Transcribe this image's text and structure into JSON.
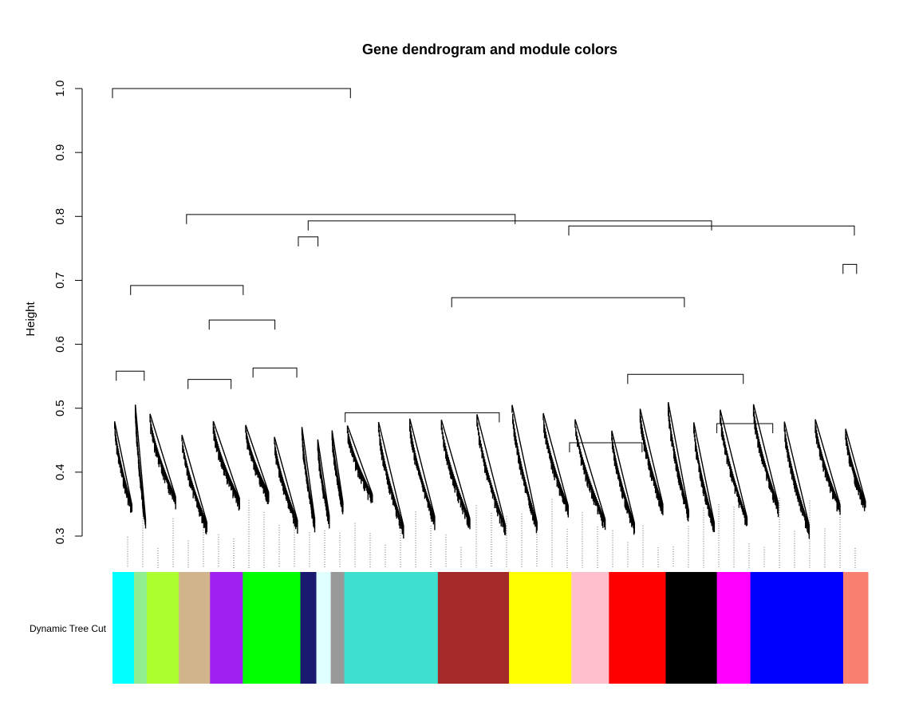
{
  "chart_data": {
    "type": "dendrogram",
    "title": "Gene dendrogram and module colors",
    "ylabel": "Height",
    "xlabel": "",
    "ylim": [
      0.3,
      1.0
    ],
    "yticks": [
      "0.3",
      "0.4",
      "0.5",
      "0.6",
      "0.7",
      "0.8",
      "0.9",
      "1.0"
    ],
    "color_row_label": "Dynamic Tree Cut",
    "modules": [
      {
        "name": "cyan",
        "color": "#00FFFF",
        "width": 27
      },
      {
        "name": "lightgreen",
        "color": "#90EE90",
        "width": 16
      },
      {
        "name": "greenyellow",
        "color": "#ADFF2F",
        "width": 40
      },
      {
        "name": "tan",
        "color": "#D2B48C",
        "width": 39
      },
      {
        "name": "purple",
        "color": "#A020F0",
        "width": 41
      },
      {
        "name": "green",
        "color": "#00FF00",
        "width": 72
      },
      {
        "name": "midnightblue",
        "color": "#191970",
        "width": 20
      },
      {
        "name": "lightcyan",
        "color": "#E0FFFF",
        "width": 18
      },
      {
        "name": "grey60",
        "color": "#999999",
        "width": 17
      },
      {
        "name": "turquoise",
        "color": "#40E0D0",
        "width": 117
      },
      {
        "name": "brown",
        "color": "#A52A2A",
        "width": 89
      },
      {
        "name": "yellow",
        "color": "#FFFF00",
        "width": 78
      },
      {
        "name": "pink",
        "color": "#FFC0CB",
        "width": 47
      },
      {
        "name": "red",
        "color": "#FF0000",
        "width": 71
      },
      {
        "name": "black",
        "color": "#000000",
        "width": 64
      },
      {
        "name": "magenta",
        "color": "#FF00FF",
        "width": 42
      },
      {
        "name": "blue",
        "color": "#0000FF",
        "width": 116
      },
      {
        "name": "salmon",
        "color": "#FA8072",
        "width": 31
      }
    ],
    "merges": [
      {
        "x1": 0.0,
        "x2": 0.315,
        "height": 1.0
      },
      {
        "x1": 0.098,
        "x2": 0.533,
        "height": 0.803
      },
      {
        "x1": 0.024,
        "x2": 0.173,
        "height": 0.692
      },
      {
        "x1": 0.128,
        "x2": 0.215,
        "height": 0.638
      },
      {
        "x1": 0.259,
        "x2": 0.793,
        "height": 0.793
      },
      {
        "x1": 0.604,
        "x2": 0.982,
        "height": 0.785
      },
      {
        "x1": 0.246,
        "x2": 0.272,
        "height": 0.768
      },
      {
        "x1": 0.449,
        "x2": 0.757,
        "height": 0.673
      },
      {
        "x1": 0.682,
        "x2": 0.835,
        "height": 0.553
      },
      {
        "x1": 0.967,
        "x2": 0.985,
        "height": 0.725
      },
      {
        "x1": 0.005,
        "x2": 0.042,
        "height": 0.558
      },
      {
        "x1": 0.1,
        "x2": 0.157,
        "height": 0.545
      },
      {
        "x1": 0.186,
        "x2": 0.244,
        "height": 0.563
      },
      {
        "x1": 0.308,
        "x2": 0.512,
        "height": 0.493
      },
      {
        "x1": 0.605,
        "x2": 0.701,
        "height": 0.446
      },
      {
        "x1": 0.8,
        "x2": 0.874,
        "height": 0.476
      }
    ]
  }
}
